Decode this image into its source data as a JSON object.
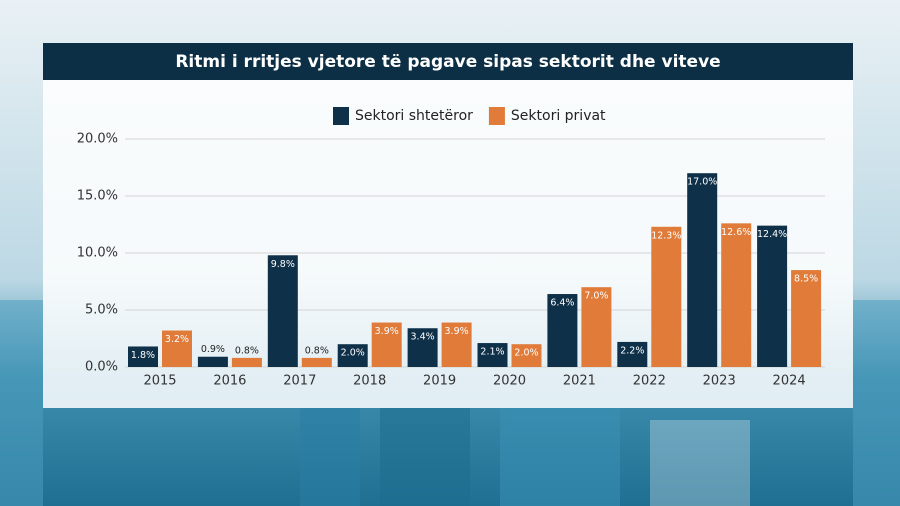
{
  "chart_data": {
    "type": "bar",
    "title": "Ritmi i rritjes vjetore të pagave sipas sektorit dhe viteve",
    "categories": [
      "2015",
      "2016",
      "2017",
      "2018",
      "2019",
      "2020",
      "2021",
      "2022",
      "2023",
      "2024"
    ],
    "series": [
      {
        "name": "Sektori shtetëror",
        "color": "#0e3048",
        "values": [
          1.8,
          0.9,
          9.8,
          2.0,
          3.4,
          2.1,
          6.4,
          2.2,
          17.0,
          12.4
        ],
        "value_labels": [
          "1.8%",
          "0.9%",
          "9.8%",
          "2.0%",
          "3.4%",
          "2.1%",
          "6.4%",
          "2.2%",
          "17.0%",
          "12.4%"
        ]
      },
      {
        "name": "Sektori privat",
        "color": "#e07b39",
        "values": [
          3.2,
          0.8,
          0.8,
          3.9,
          3.9,
          2.0,
          7.0,
          12.3,
          12.6,
          8.5
        ],
        "value_labels": [
          "3.2%",
          "0.8%",
          "0.8%",
          "3.9%",
          "3.9%",
          "2.0%",
          "7.0%",
          "12.3%",
          "12.6%",
          "8.5%"
        ]
      }
    ],
    "ylim": [
      0,
      20
    ],
    "yticks": [
      {
        "value": 0,
        "label": "0.0%"
      },
      {
        "value": 5,
        "label": "5.0%"
      },
      {
        "value": 10,
        "label": "10.0%"
      },
      {
        "value": 15,
        "label": "15.0%"
      },
      {
        "value": 20,
        "label": "20.0%"
      }
    ],
    "grid": true
  }
}
